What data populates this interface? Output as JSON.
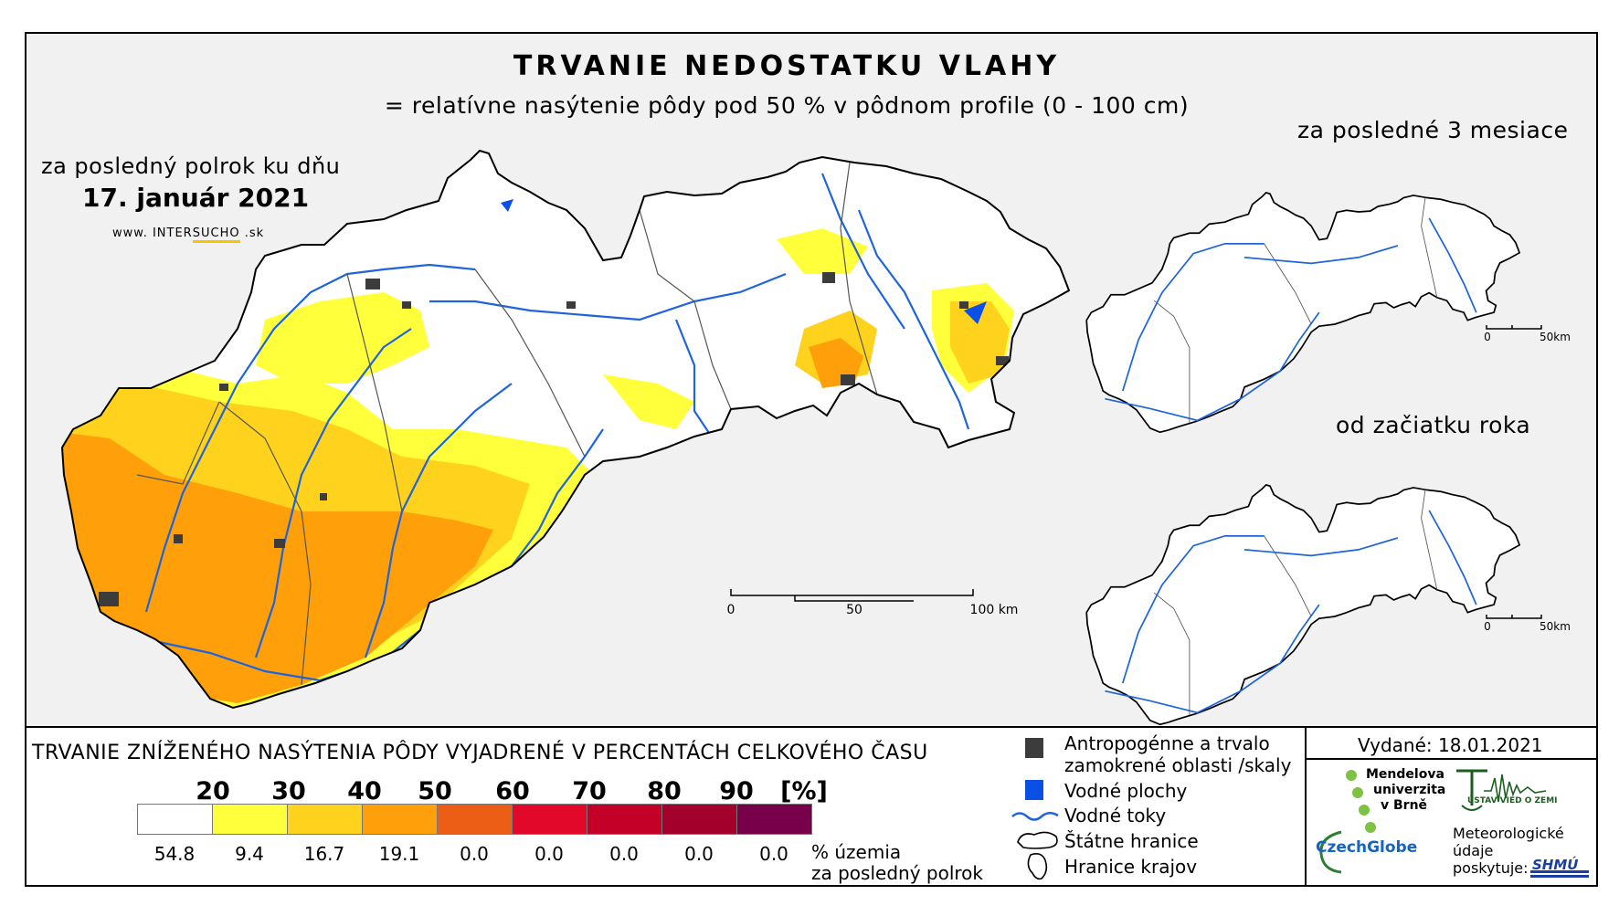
{
  "map": {
    "title": "TRVANIE NEDOSTATKU VLAHY",
    "subtitle": "= relatívne nasýtenie pôdy pod 50 % v pôdnom profile (0 - 100 cm)",
    "main_period": "za posledný polrok ku dňu",
    "main_date": "17. január 2021",
    "website_prefix": "www. INTER",
    "website_mid": "SUCHO",
    "website_suffix": " .sk",
    "scale_main": [
      "0",
      "50",
      "100 km"
    ],
    "inset_1_title": "za posledné 3 mesiace",
    "inset_2_title": "od začiatku roka",
    "inset_scale": [
      "0",
      "50km"
    ]
  },
  "legend": {
    "heading": "TRVANIE ZNÍŽENÉHO NASÝTENIA PÔDY VYJADRENÉ V PERCENTÁCH CELKOVÉHO ČASU",
    "ticks": [
      "20",
      "30",
      "40",
      "50",
      "60",
      "70",
      "80",
      "90",
      "[%]"
    ],
    "classes": [
      {
        "color": "#ffffff",
        "value": "54.8"
      },
      {
        "color": "#ffff3c",
        "value": "9.4"
      },
      {
        "color": "#ffd21e",
        "value": "16.7"
      },
      {
        "color": "#ff9f0a",
        "value": "19.1"
      },
      {
        "color": "#ec5e16",
        "value": "0.0"
      },
      {
        "color": "#e2082a",
        "value": "0.0"
      },
      {
        "color": "#c40028",
        "value": "0.0"
      },
      {
        "color": "#a4002c",
        "value": "0.0"
      },
      {
        "color": "#78004a",
        "value": "0.0"
      }
    ],
    "unit_line1": "% územia",
    "unit_line2": "za posledný polrok",
    "items": {
      "anthropogenic_line1": "Antropogénne a trvalo",
      "anthropogenic_line2": "zamokrené oblasti /skaly",
      "water_bodies": "Vodné plochy",
      "rivers": "Vodné toky",
      "state_border": "Štátne hranice",
      "region_border": "Hranice krajov"
    },
    "colors": {
      "anthropogenic": "#3c3c3c",
      "water": "#0a50e6",
      "river": "#1e64dc"
    }
  },
  "credits": {
    "issued": "Vydané: 18.01.2021",
    "mendel_1": "Mendelova",
    "mendel_2": "univerzita",
    "mendel_3": "v Brně",
    "czechglobe": "CzechGlobe",
    "uvz": "ÚSTAV VIED O ZEMI",
    "meteo_1": "Meteorologické",
    "meteo_2": "údaje",
    "meteo_3": "poskytuje:",
    "shmu": "SHMÚ"
  }
}
